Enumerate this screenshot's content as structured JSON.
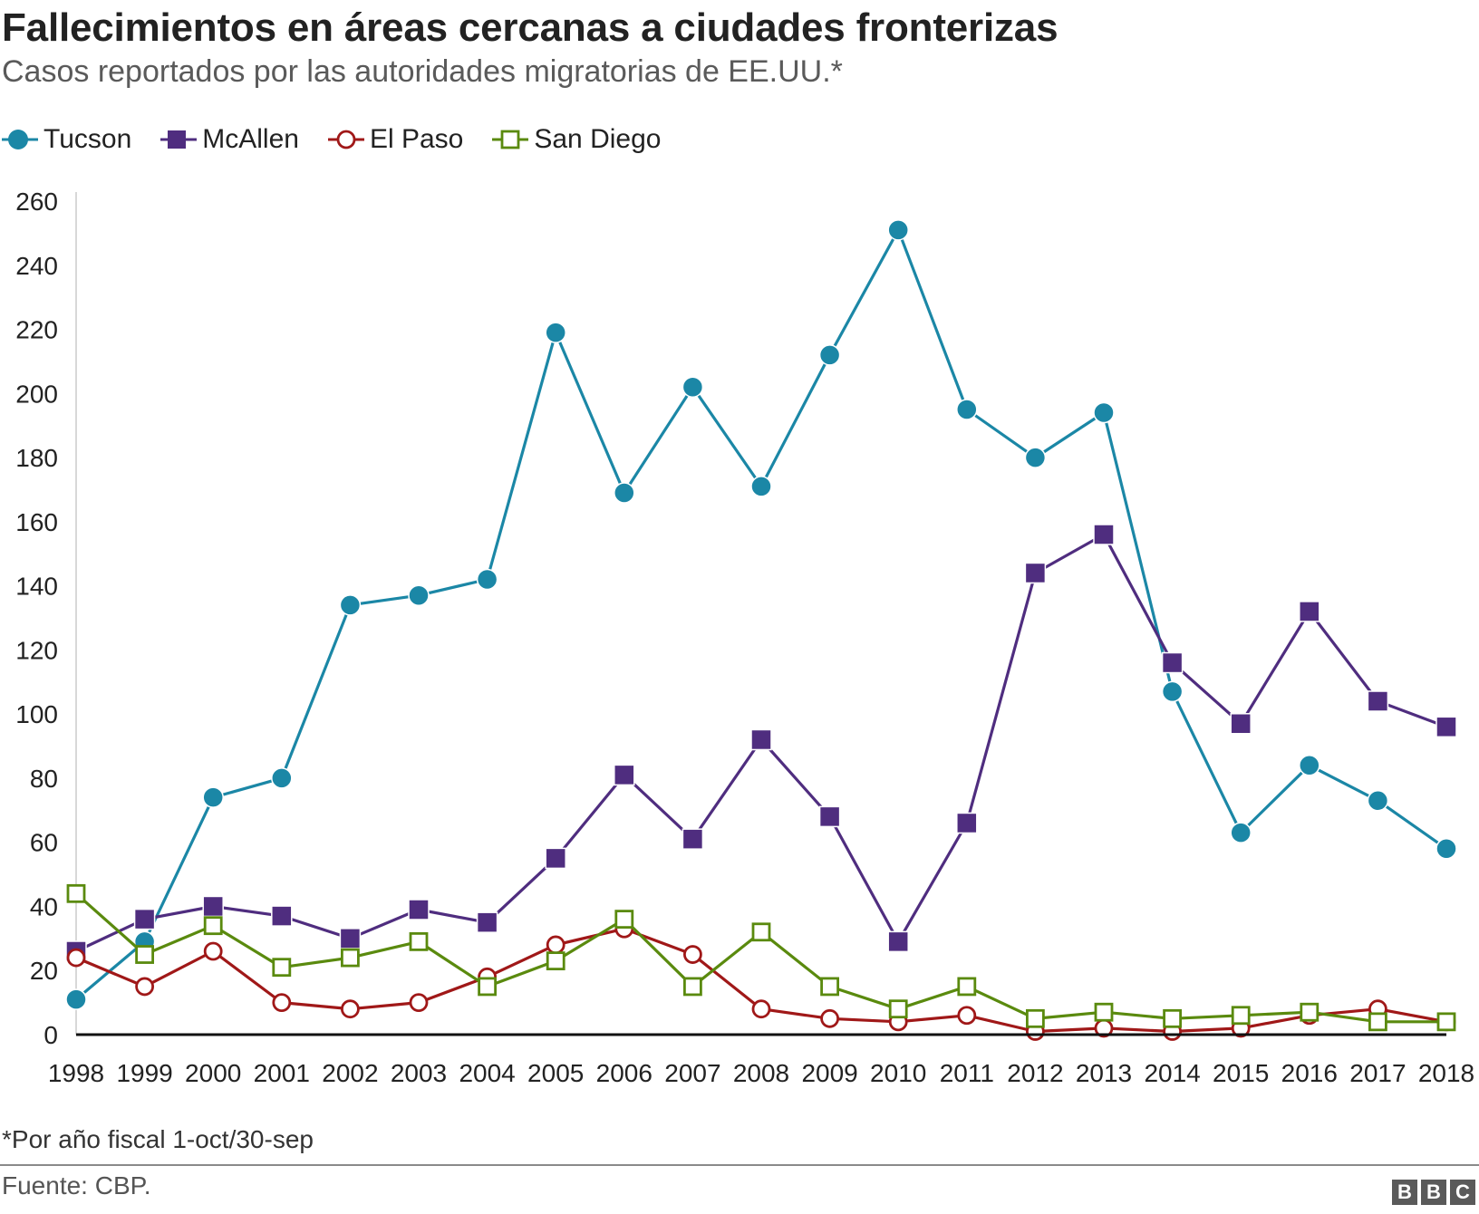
{
  "header": {
    "title": "Fallecimientos en áreas cercanas a ciudades fronterizas",
    "subtitle": "Casos reportados por las autoridades migratorias de EE.UU.*"
  },
  "footer": {
    "note": "*Por año fiscal 1-oct/30-sep",
    "source": "Fuente: CBP.",
    "logo_letters": [
      "B",
      "B",
      "C"
    ]
  },
  "chart_data": {
    "type": "line",
    "title": "Fallecimientos en áreas cercanas a ciudades fronterizas",
    "subtitle": "Casos reportados por las autoridades migratorias de EE.UU.*",
    "xlabel": "",
    "ylabel": "",
    "x": [
      "1998",
      "1999",
      "2000",
      "2001",
      "2002",
      "2003",
      "2004",
      "2005",
      "2006",
      "2007",
      "2008",
      "2009",
      "2010",
      "2011",
      "2012",
      "2013",
      "2014",
      "2015",
      "2016",
      "2017",
      "2018"
    ],
    "ylim": [
      0,
      260
    ],
    "yticks": [
      0,
      20,
      40,
      60,
      80,
      100,
      120,
      140,
      160,
      180,
      200,
      220,
      240,
      260
    ],
    "grid": false,
    "legend_position": "top-left",
    "series": [
      {
        "name": "Tucson",
        "color": "#1b87a6",
        "marker": "filled-circle",
        "values": [
          11,
          29,
          74,
          80,
          134,
          137,
          142,
          219,
          169,
          202,
          171,
          212,
          251,
          195,
          180,
          194,
          107,
          63,
          84,
          73,
          58
        ]
      },
      {
        "name": "McAllen",
        "color": "#4f2d7f",
        "marker": "filled-square",
        "values": [
          26,
          36,
          40,
          37,
          30,
          39,
          35,
          55,
          81,
          61,
          92,
          68,
          29,
          66,
          144,
          156,
          116,
          97,
          132,
          104,
          96
        ]
      },
      {
        "name": "El Paso",
        "color": "#a01818",
        "marker": "open-circle",
        "values": [
          24,
          15,
          26,
          10,
          8,
          10,
          18,
          28,
          33,
          25,
          8,
          5,
          4,
          6,
          1,
          2,
          1,
          2,
          6,
          8,
          4
        ]
      },
      {
        "name": "San Diego",
        "color": "#5a8a0e",
        "marker": "open-square",
        "values": [
          44,
          25,
          34,
          21,
          24,
          29,
          15,
          23,
          36,
          15,
          32,
          15,
          8,
          15,
          5,
          7,
          5,
          6,
          7,
          4,
          4
        ]
      }
    ]
  }
}
